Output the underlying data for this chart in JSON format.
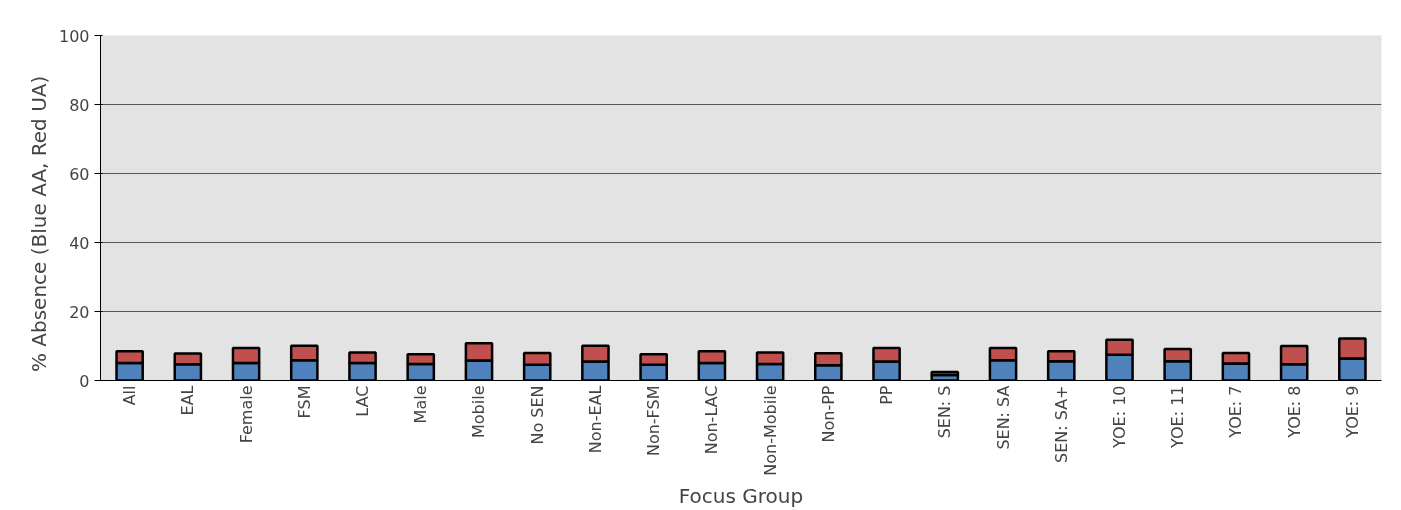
{
  "chart_data": {
    "type": "bar",
    "stacked": true,
    "xlabel": "Focus Group",
    "ylabel": "% Absence      (Blue AA, Red UA)",
    "categories": [
      "All",
      "EAL",
      "Female",
      "FSM",
      "LAC",
      "Male",
      "Mobile",
      "No SEN",
      "Non-EAL",
      "Non-FSM",
      "Non-LAC",
      "Non-Mobile",
      "Non-PP",
      "PP",
      "SEN: S",
      "SEN: SA",
      "SEN: SA+",
      "YOE: 10",
      "YOE: 11",
      "YOE: 7",
      "YOE: 8",
      "YOE: 9"
    ],
    "series": [
      {
        "color": "#4f81bd",
        "values": [
          5.1,
          4.7,
          5.1,
          5.9,
          5.1,
          4.8,
          5.8,
          4.6,
          5.5,
          4.6,
          5.1,
          4.8,
          4.4,
          5.5,
          1.6,
          5.9,
          5.6,
          7.5,
          5.6,
          4.9,
          4.7,
          6.4
        ]
      },
      {
        "color": "#c0504d",
        "values": [
          3.4,
          3.1,
          4.3,
          4.2,
          3.0,
          2.8,
          5.0,
          3.4,
          4.6,
          3.0,
          3.4,
          3.3,
          3.5,
          3.9,
          0.9,
          3.5,
          2.9,
          4.3,
          3.5,
          3.1,
          5.3,
          5.8
        ]
      }
    ],
    "ylim": [
      0,
      100
    ],
    "yticks": [
      0,
      20,
      40,
      60,
      80,
      100
    ],
    "grid": "y"
  }
}
